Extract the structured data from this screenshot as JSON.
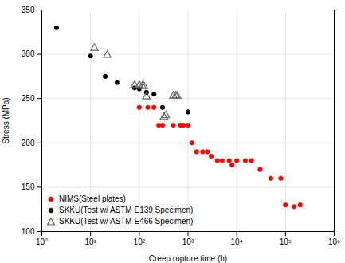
{
  "chart_data": {
    "type": "scatter",
    "xlabel": "Creep rupture time (h)",
    "ylabel": "Stress (MPa)",
    "log": "x",
    "grid": true,
    "legend": "lower left",
    "xlim": [
      1,
      1000000
    ],
    "ylim": [
      100,
      350
    ],
    "xticks": [
      {
        "value": 1,
        "label": "10⁰"
      },
      {
        "value": 10,
        "label": "10¹"
      },
      {
        "value": 100,
        "label": "10²"
      },
      {
        "value": 1000,
        "label": "10³"
      },
      {
        "value": 10000,
        "label": "10⁴"
      },
      {
        "value": 100000,
        "label": "10⁵"
      },
      {
        "value": 1000000,
        "label": "10⁶"
      }
    ],
    "yticks": [
      100,
      150,
      200,
      250,
      300,
      350
    ],
    "series": [
      {
        "name": "NIMS(Steel plates)",
        "color": "#ff0000",
        "marker": "circle",
        "x": [
          100,
          150,
          200,
          250,
          300,
          500,
          700,
          800,
          1000,
          1200,
          1500,
          2000,
          2500,
          3000,
          4000,
          5000,
          7000,
          8000,
          10000,
          15000,
          20000,
          30000,
          50000,
          80000,
          100000,
          150000,
          200000
        ],
        "values": [
          240,
          240,
          240,
          220,
          220,
          220,
          220,
          220,
          220,
          200,
          190,
          190,
          190,
          185,
          180,
          180,
          180,
          175,
          180,
          180,
          180,
          170,
          160,
          160,
          130,
          128,
          130
        ]
      },
      {
        "name": "SKKU(Test w/ ASTM E139 Specimen)",
        "color": "#000000",
        "marker": "circle",
        "x": [
          2,
          10,
          20,
          35,
          80,
          100,
          140,
          200,
          300,
          1000
        ],
        "values": [
          330,
          298,
          275,
          268,
          262,
          261,
          257,
          255,
          240,
          235
        ]
      },
      {
        "name": "SKKU(Test w/ ASTM E466 Specimen)",
        "color": "#666666",
        "marker": "open_triangle",
        "x": [
          12,
          22,
          80,
          100,
          115,
          125,
          140,
          500,
          560,
          600,
          350,
          320
        ],
        "values": [
          307,
          299,
          265,
          265,
          264,
          264,
          252,
          253,
          253,
          253,
          231,
          229
        ]
      }
    ]
  }
}
